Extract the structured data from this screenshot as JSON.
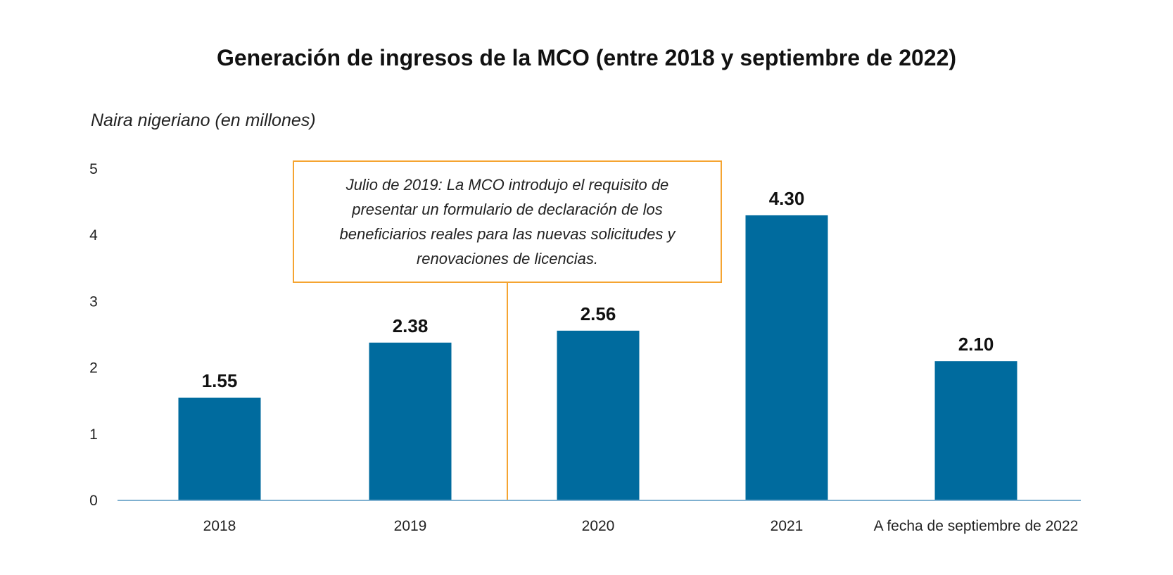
{
  "chart_data": {
    "type": "bar",
    "title": "Generación de ingresos de la MCO (entre 2018 y septiembre de 2022)",
    "ylabel": "Naira nigeriano (en millones)",
    "xlabel": "",
    "categories": [
      "2018",
      "2019",
      "2020",
      "2021",
      "A fecha de septiembre de 2022"
    ],
    "values": [
      1.55,
      2.38,
      2.56,
      4.3,
      2.1
    ],
    "value_labels": [
      "1.55",
      "2.38",
      "2.56",
      "4.30",
      "2.10"
    ],
    "ylim": [
      0,
      5
    ],
    "yticks": [
      "0",
      "1",
      "2",
      "3",
      "4",
      "5"
    ],
    "grid": false,
    "bar_color": "#006b9e",
    "axis_color": "#7fb0d0",
    "annotation": {
      "text": "Julio de 2019: La MCO introdujo el requisito de presentar un formulario de declaración de los beneficiarios reales para las nuevas solicitudes y renovaciones de licencias.",
      "border_color": "#f5a431"
    }
  }
}
